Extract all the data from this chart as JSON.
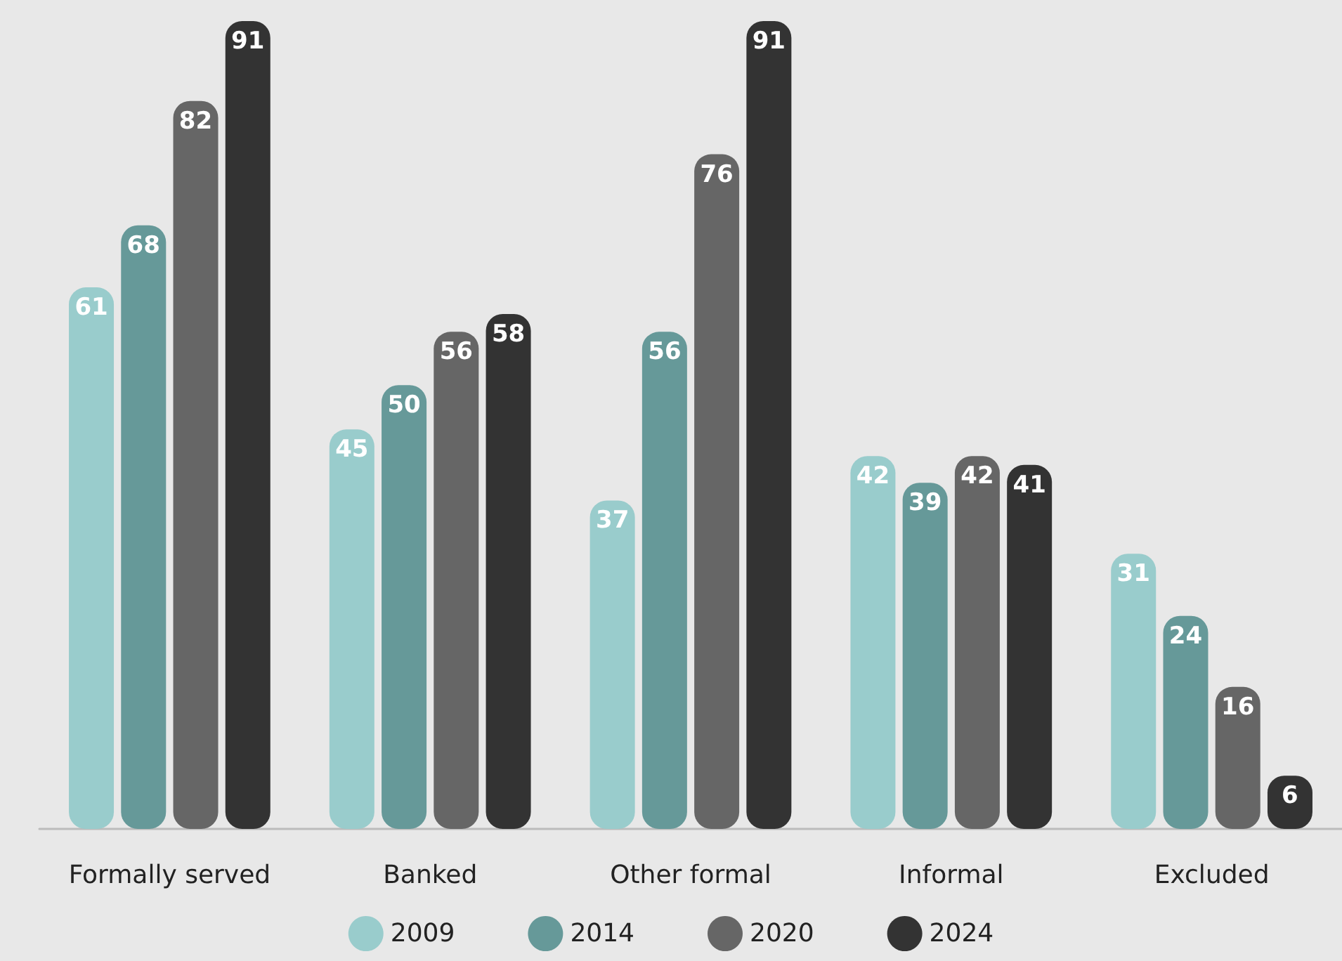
{
  "chart_data": {
    "type": "bar",
    "categories": [
      "Formally served",
      "Banked",
      "Other formal",
      "Informal",
      "Excluded"
    ],
    "series": [
      {
        "name": "2009",
        "color": "#99cccc",
        "values": [
          61,
          45,
          37,
          42,
          31
        ]
      },
      {
        "name": "2014",
        "color": "#669999",
        "values": [
          68,
          50,
          56,
          39,
          24
        ]
      },
      {
        "name": "2020",
        "color": "#666666",
        "values": [
          82,
          56,
          76,
          42,
          16
        ]
      },
      {
        "name": "2024",
        "color": "#333333",
        "values": [
          91,
          58,
          91,
          41,
          6
        ]
      }
    ],
    "data_labels": true,
    "legend": "bottom"
  }
}
